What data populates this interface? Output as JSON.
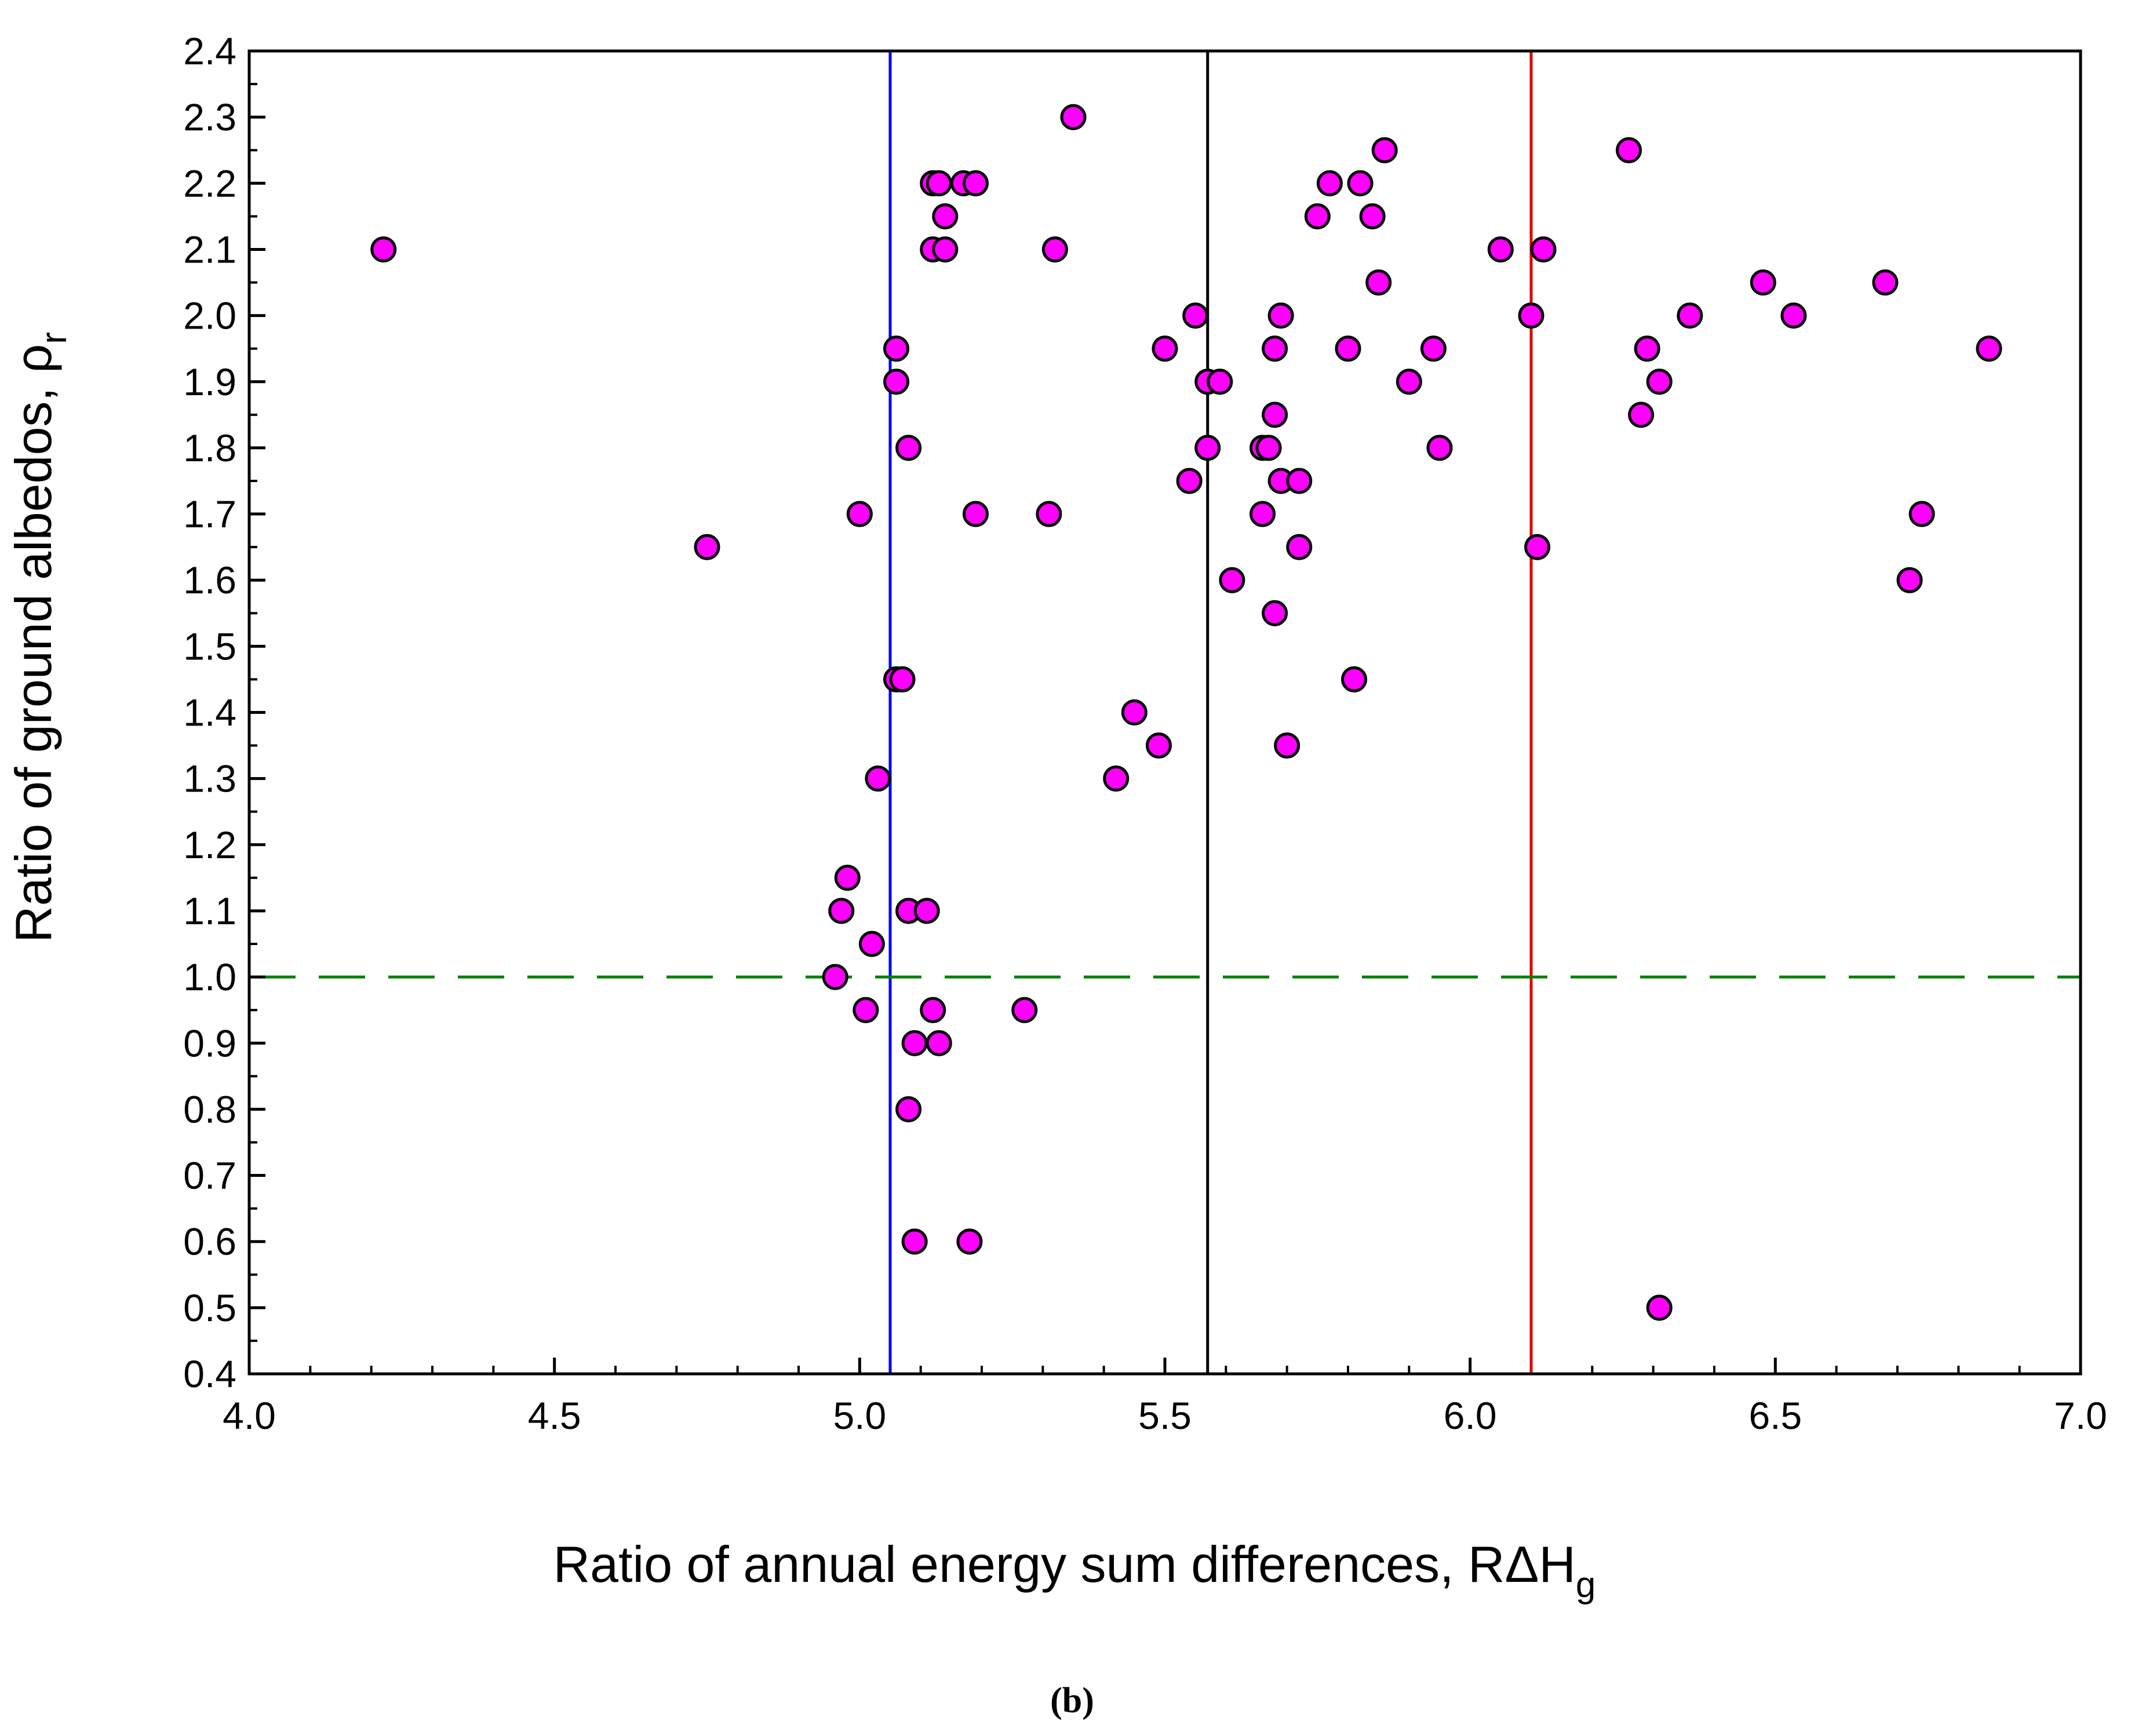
{
  "chart_data": {
    "type": "scatter",
    "title": "",
    "xlabel": "Ratio of annual energy sum differences, RΔH",
    "xlabel_subscript": "g",
    "ylabel": "Ratio of ground albedos, ρ",
    "ylabel_subscript": "r",
    "xlim": [
      4.0,
      7.0
    ],
    "ylim": [
      0.4,
      2.4
    ],
    "x_major_ticks": [
      4.0,
      4.5,
      5.0,
      5.5,
      6.0,
      6.5,
      7.0
    ],
    "x_tick_labels": [
      "4.0",
      "4.5",
      "5.0",
      "5.5",
      "6.0",
      "6.5",
      "7.0"
    ],
    "y_major_ticks": [
      0.4,
      0.5,
      0.6,
      0.7,
      0.8,
      0.9,
      1.0,
      1.1,
      1.2,
      1.3,
      1.4,
      1.5,
      1.6,
      1.7,
      1.8,
      1.9,
      2.0,
      2.1,
      2.2,
      2.3,
      2.4
    ],
    "y_tick_labels": [
      "0.4",
      "0.5",
      "0.6",
      "0.7",
      "0.8",
      "0.9",
      "1.0",
      "1.1",
      "1.2",
      "1.3",
      "1.4",
      "1.5",
      "1.6",
      "1.7",
      "1.8",
      "1.9",
      "2.0",
      "2.1",
      "2.2",
      "2.3",
      "2.4"
    ],
    "grid": false,
    "marker_color": "#ff00ff",
    "marker_edge_color": "#000000",
    "reference_lines": [
      {
        "orientation": "vertical",
        "value": 5.05,
        "color": "#0000ff",
        "style": "solid"
      },
      {
        "orientation": "vertical",
        "value": 5.57,
        "color": "#000000",
        "style": "solid"
      },
      {
        "orientation": "vertical",
        "value": 6.1,
        "color": "#e00000",
        "style": "solid"
      },
      {
        "orientation": "horizontal",
        "value": 1.0,
        "color": "#008000",
        "style": "dashed"
      }
    ],
    "points": [
      [
        4.22,
        2.1
      ],
      [
        4.75,
        1.65
      ],
      [
        4.96,
        1.0
      ],
      [
        4.97,
        1.1
      ],
      [
        4.98,
        1.15
      ],
      [
        5.0,
        1.7
      ],
      [
        5.01,
        0.95
      ],
      [
        5.02,
        1.05
      ],
      [
        5.03,
        1.3
      ],
      [
        5.06,
        1.95
      ],
      [
        5.06,
        1.9
      ],
      [
        5.06,
        1.45
      ],
      [
        5.07,
        1.45
      ],
      [
        5.08,
        1.8
      ],
      [
        5.08,
        1.1
      ],
      [
        5.08,
        0.8
      ],
      [
        5.09,
        0.9
      ],
      [
        5.09,
        0.6
      ],
      [
        5.11,
        1.1
      ],
      [
        5.12,
        2.2
      ],
      [
        5.12,
        2.1
      ],
      [
        5.12,
        0.95
      ],
      [
        5.13,
        2.2
      ],
      [
        5.13,
        0.9
      ],
      [
        5.14,
        2.15
      ],
      [
        5.14,
        2.1
      ],
      [
        5.17,
        2.2
      ],
      [
        5.19,
        2.2
      ],
      [
        5.18,
        0.6
      ],
      [
        5.19,
        1.7
      ],
      [
        5.27,
        0.95
      ],
      [
        5.31,
        1.7
      ],
      [
        5.32,
        2.1
      ],
      [
        5.35,
        2.3
      ],
      [
        5.42,
        1.3
      ],
      [
        5.45,
        1.4
      ],
      [
        5.49,
        1.35
      ],
      [
        5.5,
        1.95
      ],
      [
        5.54,
        1.75
      ],
      [
        5.55,
        2.0
      ],
      [
        5.57,
        1.9
      ],
      [
        5.57,
        1.8
      ],
      [
        5.59,
        1.9
      ],
      [
        5.61,
        1.6
      ],
      [
        5.66,
        1.8
      ],
      [
        5.66,
        1.7
      ],
      [
        5.67,
        1.8
      ],
      [
        5.68,
        1.95
      ],
      [
        5.68,
        1.85
      ],
      [
        5.68,
        1.55
      ],
      [
        5.69,
        2.0
      ],
      [
        5.69,
        1.75
      ],
      [
        5.7,
        1.35
      ],
      [
        5.72,
        1.75
      ],
      [
        5.72,
        1.65
      ],
      [
        5.75,
        2.15
      ],
      [
        5.77,
        2.2
      ],
      [
        5.8,
        1.95
      ],
      [
        5.81,
        1.45
      ],
      [
        5.82,
        2.2
      ],
      [
        5.84,
        2.15
      ],
      [
        5.85,
        2.05
      ],
      [
        5.86,
        2.25
      ],
      [
        5.9,
        1.9
      ],
      [
        5.94,
        1.95
      ],
      [
        5.95,
        1.8
      ],
      [
        6.05,
        2.1
      ],
      [
        6.1,
        2.0
      ],
      [
        6.12,
        2.1
      ],
      [
        6.11,
        1.65
      ],
      [
        6.26,
        2.25
      ],
      [
        6.28,
        1.85
      ],
      [
        6.29,
        1.95
      ],
      [
        6.31,
        1.9
      ],
      [
        6.31,
        0.5
      ],
      [
        6.36,
        2.0
      ],
      [
        6.48,
        2.05
      ],
      [
        6.53,
        2.0
      ],
      [
        6.68,
        2.05
      ],
      [
        6.72,
        1.6
      ],
      [
        6.74,
        1.7
      ],
      [
        6.85,
        1.95
      ]
    ]
  },
  "caption": "(b)"
}
